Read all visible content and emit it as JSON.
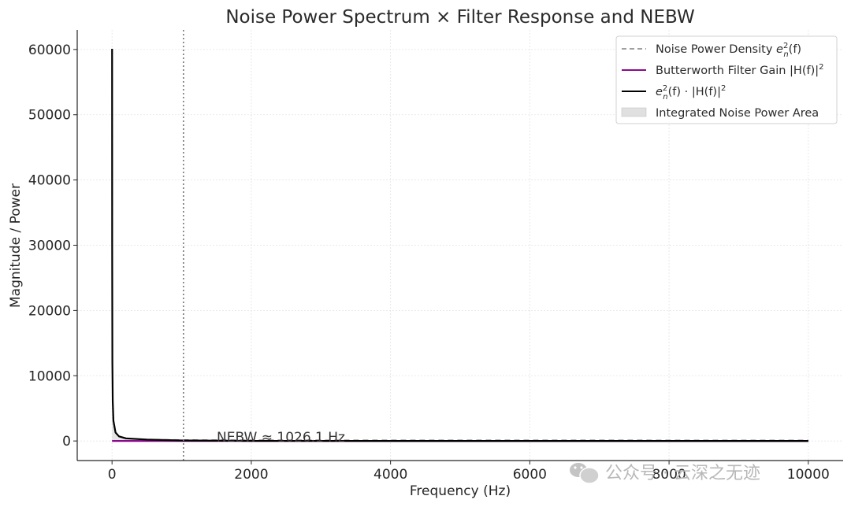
{
  "chart_data": {
    "type": "line",
    "title": "Noise Power Spectrum × Filter Response and NEBW",
    "xlabel": "Frequency (Hz)",
    "ylabel": "Magnitude / Power",
    "xlim": [
      -500,
      10500
    ],
    "ylim": [
      -3000,
      63000
    ],
    "xticks": [
      0,
      2000,
      4000,
      6000,
      8000,
      10000
    ],
    "yticks": [
      0,
      10000,
      20000,
      30000,
      40000,
      50000,
      60000
    ],
    "grid": true,
    "legend_position": "top-right",
    "series": [
      {
        "name": "Noise Power Density e_n^2(f)",
        "style": "dashed",
        "color": "#808080",
        "x": [
          1,
          2,
          5,
          10,
          20,
          50,
          100,
          200,
          500,
          1000,
          2000,
          5000,
          10000
        ],
        "y": [
          60100,
          30100,
          12100,
          6100,
          3100,
          1300,
          700,
          400,
          220,
          160,
          130,
          112,
          106
        ]
      },
      {
        "name": "Butterworth Filter Gain |H(f)|^2",
        "style": "solid",
        "color": "#8b0a8b",
        "x": [
          0,
          500,
          1000,
          1500,
          2000,
          3000,
          5000,
          10000
        ],
        "y": [
          1,
          0.94,
          0.5,
          0.16,
          0.06,
          0.01,
          0.001,
          0
        ]
      },
      {
        "name": "e_n^2(f) · |H(f)|^2",
        "style": "solid",
        "color": "#000000",
        "x": [
          1,
          2,
          5,
          10,
          20,
          50,
          100,
          200,
          500,
          1000,
          2000,
          5000,
          10000
        ],
        "y": [
          60100,
          30100,
          12100,
          6100,
          3100,
          1300,
          700,
          400,
          210,
          80,
          8,
          0.1,
          0
        ]
      },
      {
        "name": "Integrated Noise Power Area",
        "style": "area",
        "color": "#cccccc"
      }
    ],
    "vline": {
      "x": 1026.1,
      "style": "dotted",
      "color": "#777777"
    },
    "annotation": {
      "text": "NEBW ≈ 1026.1 Hz",
      "x": 1500,
      "y": 200
    }
  },
  "legend": {
    "items": [
      {
        "label_main": "Noise Power Density ",
        "label_math": "e",
        "sup": "2",
        "sub": "n",
        "tail": "(f)"
      },
      {
        "label_main": "Butterworth Filter Gain |H(f)|",
        "sup": "2"
      },
      {
        "label_main": "e",
        "sup": "2",
        "sub": "n",
        "tail": "(f) · |H(f)|",
        "sup2": "2"
      },
      {
        "label_main": "Integrated Noise Power Area"
      }
    ]
  },
  "watermark": {
    "text": "公众号 · 云深之无迹"
  }
}
